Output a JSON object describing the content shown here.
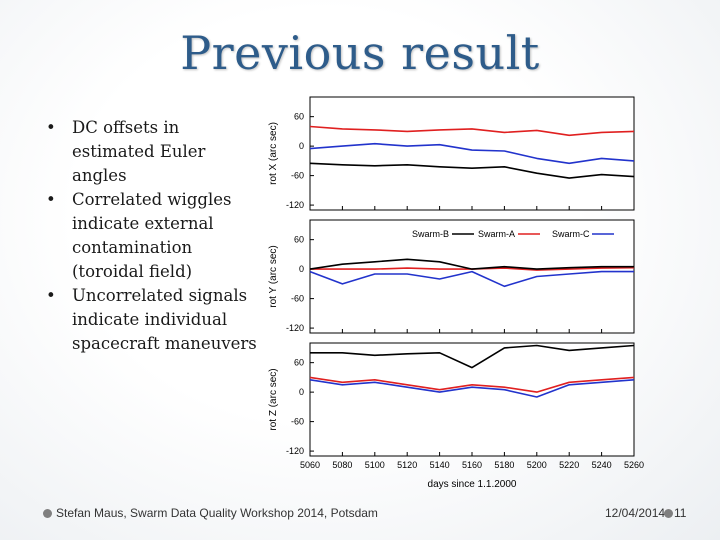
{
  "slide": {
    "title": "Previous result",
    "bullets": [
      {
        "marker": "•",
        "text": "DC offsets in estimated Euler angles"
      },
      {
        "marker": "•",
        "text": "Correlated wiggles indicate external contamination (toroidal field)"
      },
      {
        "marker": "•",
        "text": "Uncorrelated signals indicate individual spacecraft maneuvers"
      }
    ],
    "footer": {
      "left": "Stefan Maus, Swarm Data Quality Workshop 2014, Potsdam",
      "date": "12/04/2014",
      "page": "11"
    }
  },
  "chart_data": {
    "type": "line",
    "xlabel": "days since 1.1.2000",
    "xlim": [
      5060,
      5260
    ],
    "x_ticks": [
      5060,
      5080,
      5100,
      5120,
      5140,
      5160,
      5180,
      5200,
      5220,
      5240,
      5260
    ],
    "legend": {
      "placement": "top of middle panel",
      "entries": [
        {
          "name": "Swarm-B",
          "color": "#000000"
        },
        {
          "name": "Swarm-A",
          "color": "#e02020"
        },
        {
          "name": "Swarm-C",
          "color": "#2233cc"
        }
      ]
    },
    "x": [
      5060,
      5080,
      5100,
      5120,
      5140,
      5160,
      5180,
      5200,
      5220,
      5240,
      5260
    ],
    "panels": [
      {
        "ylabel": "rot X (arc sec)",
        "ylim": [
          -130,
          100
        ],
        "y_ticks": [
          60,
          0,
          -60,
          -120
        ],
        "series": [
          {
            "name": "Swarm-A",
            "color": "#e02020",
            "values": [
              40,
              35,
              33,
              30,
              33,
              35,
              28,
              32,
              22,
              28,
              30
            ]
          },
          {
            "name": "Swarm-C",
            "color": "#2233cc",
            "values": [
              -5,
              0,
              5,
              0,
              3,
              -8,
              -10,
              -25,
              -35,
              -25,
              -30
            ]
          },
          {
            "name": "Swarm-B",
            "color": "#000000",
            "values": [
              -35,
              -38,
              -40,
              -38,
              -42,
              -45,
              -42,
              -55,
              -65,
              -58,
              -62
            ]
          }
        ]
      },
      {
        "ylabel": "rot Y (arc sec)",
        "ylim": [
          -130,
          100
        ],
        "y_ticks": [
          60,
          0,
          -60,
          -120
        ],
        "series": [
          {
            "name": "Swarm-A",
            "color": "#e02020",
            "values": [
              0,
              0,
              0,
              2,
              0,
              0,
              2,
              -2,
              0,
              2,
              3
            ]
          },
          {
            "name": "Swarm-C",
            "color": "#2233cc",
            "values": [
              -5,
              -30,
              -10,
              -10,
              -20,
              -5,
              -35,
              -15,
              -10,
              -5,
              -5
            ]
          },
          {
            "name": "Swarm-B",
            "color": "#000000",
            "values": [
              0,
              10,
              15,
              20,
              15,
              0,
              5,
              0,
              3,
              5,
              5
            ]
          }
        ]
      },
      {
        "ylabel": "rot Z (arc sec)",
        "ylim": [
          -130,
          100
        ],
        "y_ticks": [
          60,
          0,
          -60,
          -120
        ],
        "series": [
          {
            "name": "Swarm-B",
            "color": "#000000",
            "values": [
              80,
              80,
              75,
              78,
              80,
              50,
              90,
              95,
              85,
              90,
              95
            ]
          },
          {
            "name": "Swarm-A",
            "color": "#e02020",
            "values": [
              30,
              20,
              25,
              15,
              5,
              15,
              10,
              0,
              20,
              25,
              30
            ]
          },
          {
            "name": "Swarm-C",
            "color": "#2233cc",
            "values": [
              25,
              15,
              20,
              10,
              0,
              10,
              5,
              -10,
              15,
              20,
              25
            ]
          }
        ]
      }
    ]
  }
}
